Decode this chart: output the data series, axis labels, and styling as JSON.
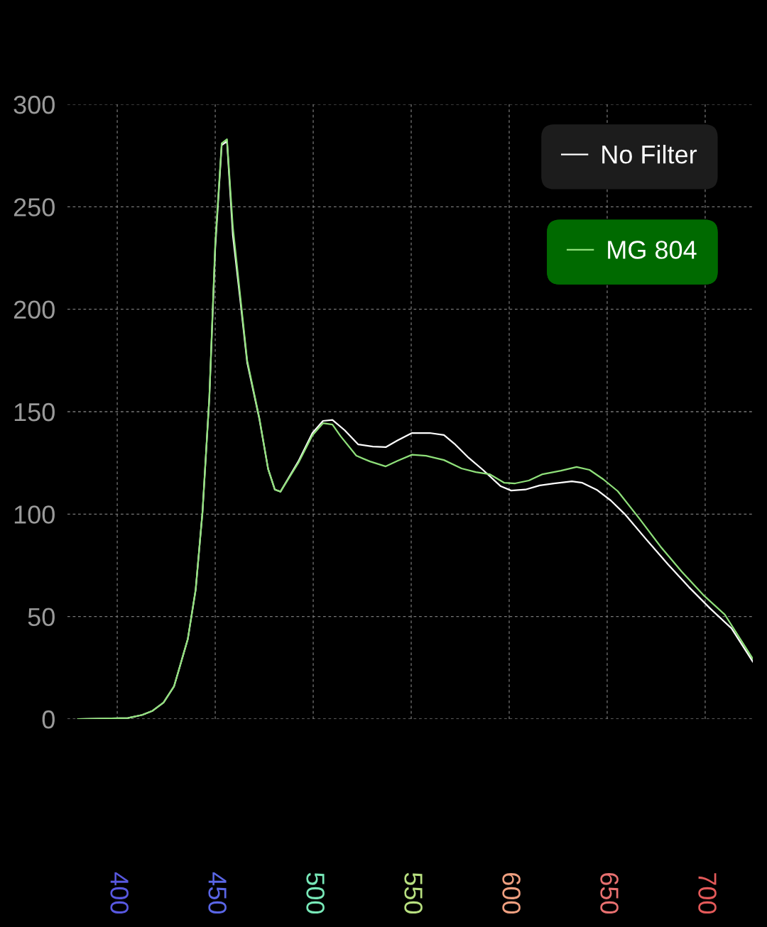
{
  "chart_data": {
    "type": "line",
    "xlim": [
      374.6,
      724.3
    ],
    "ylim": [
      0,
      300
    ],
    "xticks": [
      400,
      450,
      500,
      550,
      600,
      650,
      700
    ],
    "yticks": [
      0,
      50,
      100,
      150,
      200,
      250,
      300
    ],
    "grid": true,
    "legend": "top right",
    "marker": "none",
    "line_style": "solid",
    "series": [
      {
        "name": "No Filter",
        "color": "#ffffff",
        "x": [
          380,
          405.4,
          412.7,
          418,
          423.6,
          429,
          436,
          440,
          443.5,
          447,
          450,
          453.3,
          456,
          459,
          462.7,
          466.3,
          472.5,
          477,
          480.4,
          483.3,
          492.4,
          499.6,
          505,
          509.8,
          516,
          523,
          530.4,
          537,
          543,
          550.4,
          559.4,
          566.7,
          572,
          579.3,
          586.6,
          595.7,
          601,
          608.3,
          615.6,
          622.8,
          632,
          637.3,
          644.6,
          651.8,
          659,
          670,
          681,
          691.7,
          702.5,
          713.4,
          724.3
        ],
        "values": [
          0,
          0.5,
          2,
          4,
          8,
          16,
          39,
          63,
          101,
          157,
          230,
          280,
          282,
          236,
          205,
          174,
          146.5,
          122,
          112,
          111,
          125.7,
          139.6,
          145.5,
          146,
          141,
          134,
          133,
          132.7,
          136,
          139.6,
          139.6,
          138.6,
          134.4,
          127.5,
          121.6,
          113.6,
          111.5,
          112,
          114,
          115,
          116,
          115.3,
          111.9,
          106.7,
          100,
          87.6,
          75.5,
          64.4,
          54,
          44.3,
          28
        ]
      },
      {
        "name": "MG 804",
        "color": "#8fe07a",
        "x": [
          380,
          405.4,
          412.7,
          418,
          423.6,
          429,
          436,
          440,
          443.5,
          447,
          450,
          453.3,
          456,
          459,
          462.7,
          466.3,
          472.5,
          477,
          480.4,
          483.3,
          492.4,
          499.6,
          505,
          509.8,
          514,
          522,
          529,
          537,
          543,
          550.4,
          557.6,
          566.7,
          575.7,
          583,
          590,
          597.5,
          603,
          610,
          617,
          626.4,
          634.4,
          641,
          648,
          655.4,
          666.3,
          677.2,
          688,
          699,
          710,
          724.3
        ],
        "values": [
          0,
          0.5,
          2,
          4,
          8,
          16,
          39,
          63,
          101,
          157,
          232,
          281,
          283,
          240,
          207,
          175,
          147,
          122,
          112,
          111,
          125,
          138.5,
          144.4,
          143.7,
          138,
          128.5,
          125.7,
          123.3,
          126,
          129,
          128.5,
          126.4,
          122.3,
          120.5,
          119.5,
          115.3,
          115,
          116.4,
          119.5,
          121.2,
          123,
          121.6,
          117,
          111.2,
          98,
          84.2,
          72,
          60.6,
          51,
          29.4
        ]
      }
    ]
  }
}
